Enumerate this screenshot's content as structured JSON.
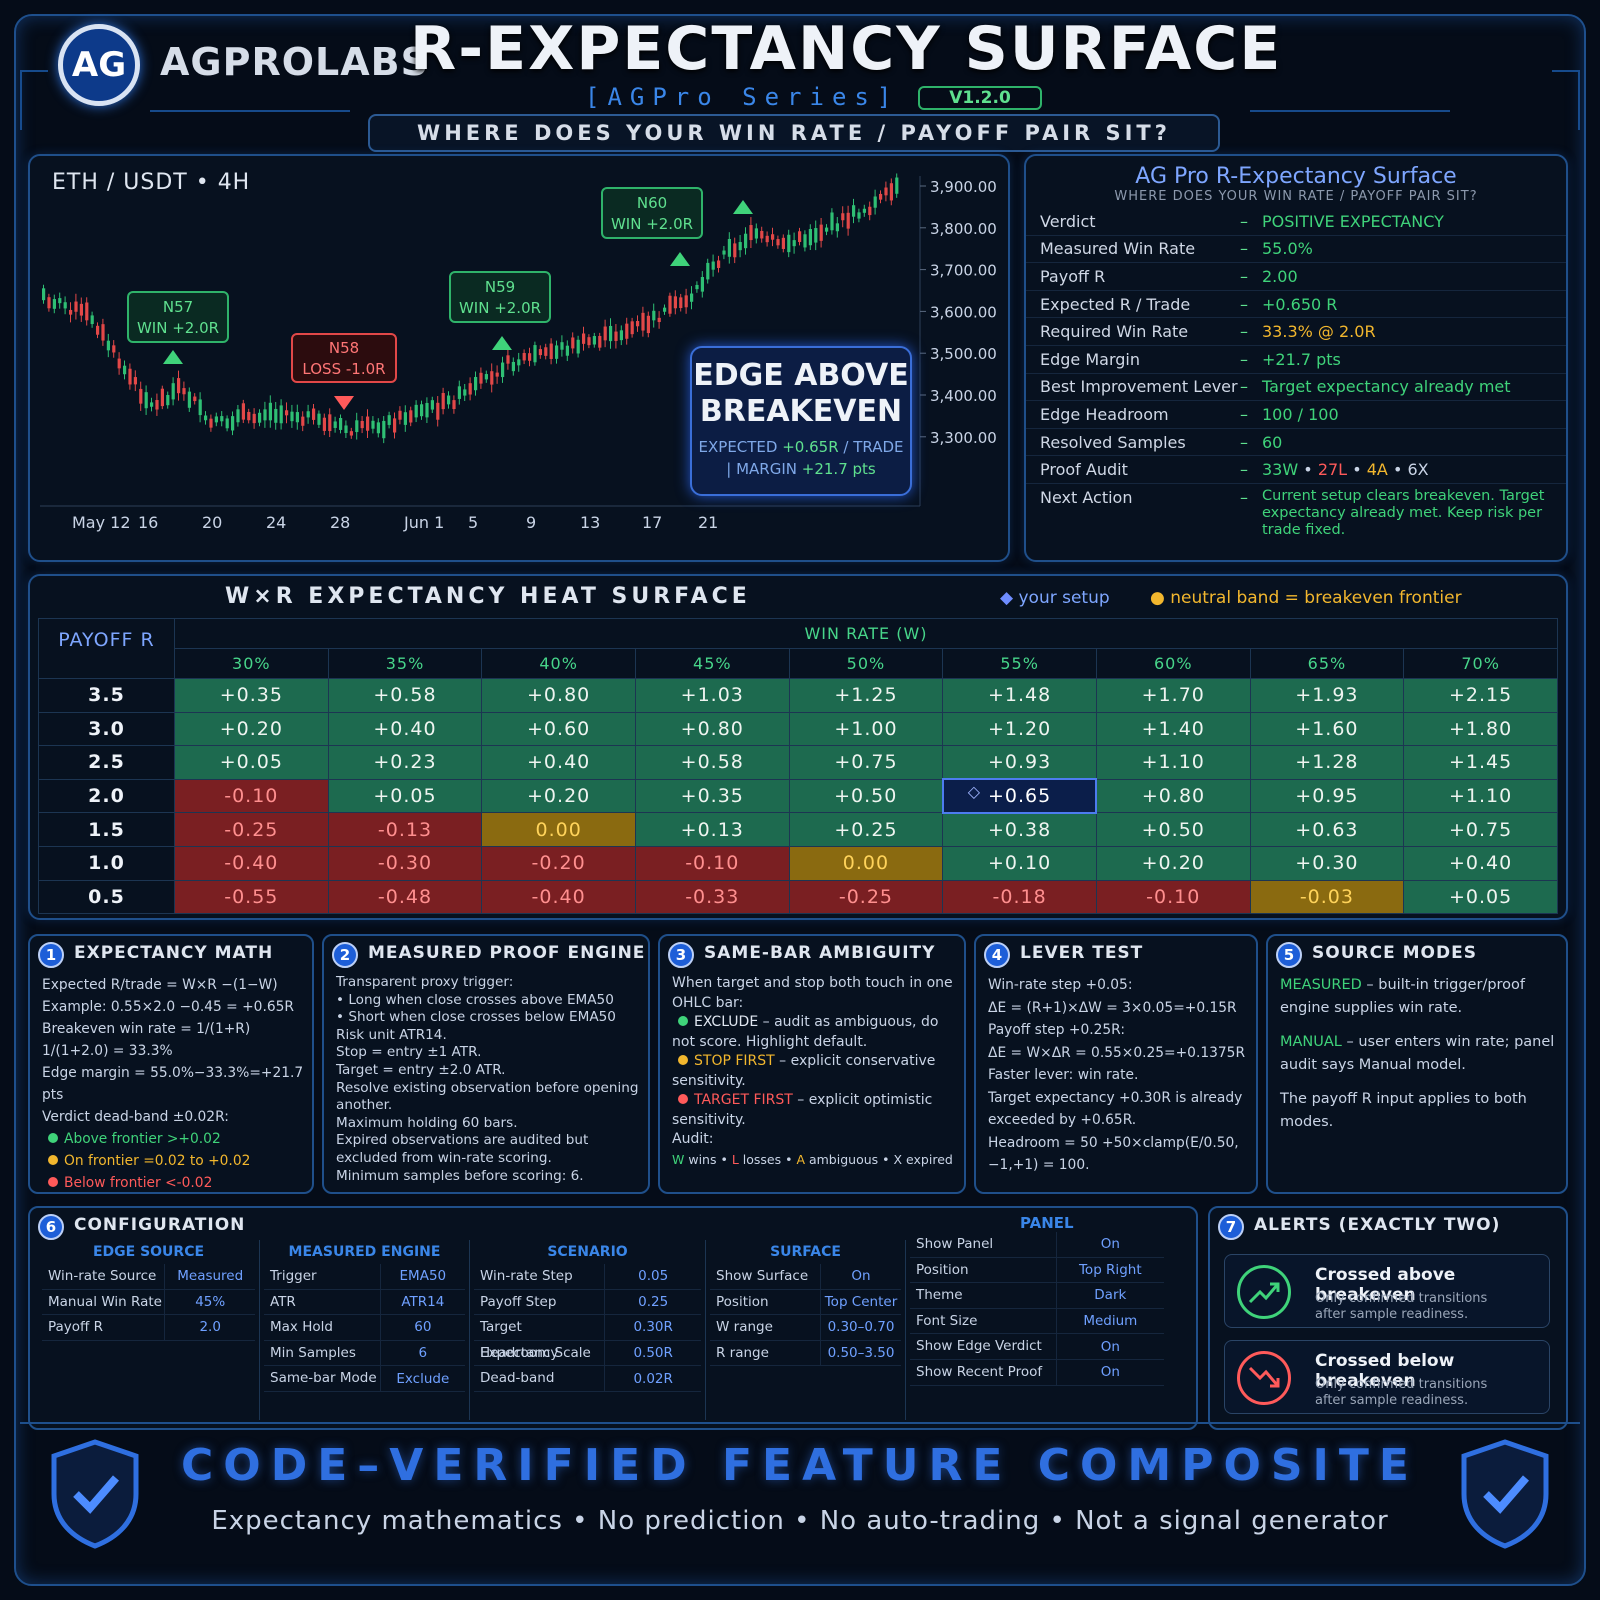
{
  "header": {
    "logo": "AG",
    "brand": "AGPROLABS",
    "title": "R-EXPECTANCY SURFACE",
    "series": "[AGPro Series]",
    "version": "V1.2.0",
    "question": "WHERE DOES YOUR WIN RATE / PAYOFF PAIR SIT?"
  },
  "chart": {
    "symbol": "ETH / USDT • 4H",
    "price_ticks": [
      "3,900.00",
      "3,800.00",
      "3,700.00",
      "3,600.00",
      "3,500.00",
      "3,400.00",
      "3,300.00"
    ],
    "date_ticks": [
      "May 12",
      "16",
      "20",
      "24",
      "28",
      "Jun 1",
      "5",
      "9",
      "13",
      "17",
      "21"
    ],
    "trades": [
      {
        "id": "N57",
        "label1": "N57",
        "label2": "WIN +2.0R",
        "type": "win"
      },
      {
        "id": "N58",
        "label1": "N58",
        "label2": "LOSS -1.0R",
        "type": "loss"
      },
      {
        "id": "N59",
        "label1": "N59",
        "label2": "WIN +2.0R",
        "type": "win"
      },
      {
        "id": "N60",
        "label1": "N60",
        "label2": "WIN +2.0R",
        "type": "win"
      }
    ],
    "edge": {
      "line1": "EDGE ABOVE",
      "line2": "BREAKEVEN",
      "expected_prefix": "EXPECTED ",
      "expected_value": "+0.65R",
      "expected_suffix": " / TRADE",
      "margin_prefix": "| MARGIN ",
      "margin_value": "+21.7 pts"
    }
  },
  "summary": {
    "title": "AG Pro R-Expectancy Surface",
    "subtitle": "WHERE DOES YOUR WIN RATE / PAYOFF PAIR SIT?",
    "dash": "–",
    "rows": [
      {
        "k": "Verdict",
        "v": "POSITIVE EXPECTANCY"
      },
      {
        "k": "Measured Win Rate",
        "v": "55.0%"
      },
      {
        "k": "Payoff R",
        "v": "2.00"
      },
      {
        "k": "Expected R / Trade",
        "v": "+0.650 R"
      },
      {
        "k": "Required Win Rate",
        "v": "33.3% @ 2.0R"
      },
      {
        "k": "Edge Margin",
        "v": "+21.7 pts"
      },
      {
        "k": "Best Improvement Lever",
        "v": "Target expectancy already met"
      },
      {
        "k": "Edge Headroom",
        "v": "100 / 100"
      },
      {
        "k": "Resolved Samples",
        "v": "60"
      }
    ],
    "audit": {
      "k": "Proof Audit",
      "w": "33W",
      "l": "27L",
      "a": "4A",
      "x": "6X",
      "sep": "•"
    },
    "next": {
      "k": "Next Action",
      "v": "Current setup clears breakeven. Target expectancy already met. Keep risk per trade fixed."
    }
  },
  "heat": {
    "title": "W×R EXPECTANCY HEAT SURFACE",
    "legend_setup": "your setup",
    "legend_neutral": "neutral band = breakeven frontier",
    "row_header": "PAYOFF R",
    "col_header": "WIN RATE (W)",
    "cols": [
      "30%",
      "35%",
      "40%",
      "45%",
      "50%",
      "55%",
      "60%",
      "65%",
      "70%"
    ],
    "rows": [
      {
        "r": "3.5",
        "v": [
          "+0.35",
          "+0.58",
          "+0.80",
          "+1.03",
          "+1.25",
          "+1.48",
          "+1.70",
          "+1.93",
          "+2.15"
        ],
        "c": [
          "g",
          "g",
          "g",
          "g",
          "g",
          "g",
          "g",
          "g",
          "g"
        ]
      },
      {
        "r": "3.0",
        "v": [
          "+0.20",
          "+0.40",
          "+0.60",
          "+0.80",
          "+1.00",
          "+1.20",
          "+1.40",
          "+1.60",
          "+1.80"
        ],
        "c": [
          "g",
          "g",
          "g",
          "g",
          "g",
          "g",
          "g",
          "g",
          "g"
        ]
      },
      {
        "r": "2.5",
        "v": [
          "+0.05",
          "+0.23",
          "+0.40",
          "+0.58",
          "+0.75",
          "+0.93",
          "+1.10",
          "+1.28",
          "+1.45"
        ],
        "c": [
          "g",
          "g",
          "g",
          "g",
          "g",
          "g",
          "g",
          "g",
          "g"
        ]
      },
      {
        "r": "2.0",
        "v": [
          "-0.10",
          "+0.05",
          "+0.20",
          "+0.35",
          "+0.50",
          "+0.65",
          "+0.80",
          "+0.95",
          "+1.10"
        ],
        "c": [
          "r",
          "g",
          "g",
          "g",
          "g",
          "me",
          "g",
          "g",
          "g"
        ]
      },
      {
        "r": "1.5",
        "v": [
          "-0.25",
          "-0.13",
          "0.00",
          "+0.13",
          "+0.25",
          "+0.38",
          "+0.50",
          "+0.63",
          "+0.75"
        ],
        "c": [
          "r",
          "r",
          "n",
          "g",
          "g",
          "g",
          "g",
          "g",
          "g"
        ]
      },
      {
        "r": "1.0",
        "v": [
          "-0.40",
          "-0.30",
          "-0.20",
          "-0.10",
          "0.00",
          "+0.10",
          "+0.20",
          "+0.30",
          "+0.40"
        ],
        "c": [
          "r",
          "r",
          "r",
          "r",
          "n",
          "g",
          "g",
          "g",
          "g"
        ]
      },
      {
        "r": "0.5",
        "v": [
          "-0.55",
          "-0.48",
          "-0.40",
          "-0.33",
          "-0.25",
          "-0.18",
          "-0.10",
          "-0.03",
          "+0.05"
        ],
        "c": [
          "r",
          "r",
          "r",
          "r",
          "r",
          "r",
          "r",
          "n",
          "g"
        ]
      }
    ]
  },
  "cards": {
    "c1": {
      "n": "1",
      "title": "EXPECTANCY MATH",
      "l1": "Expected R/trade = W×R −(1−W)",
      "l2": "Example: 0.55×2.0 −0.45 = +0.65R",
      "l3": "Breakeven win rate = 1/(1+R)",
      "l4": "1/(1+2.0) = 33.3%",
      "l5": "Edge margin = 55.0%−33.3%=+21.7 pts",
      "l6": "Verdict dead-band ±0.02R:",
      "b1": "Above frontier >+0.02",
      "b2": "On frontier =0.02 to +0.02",
      "b3": "Below frontier <-0.02"
    },
    "c2": {
      "n": "2",
      "title": "MEASURED PROOF ENGINE",
      "lines": [
        "Transparent proxy trigger:",
        "• Long when close crosses above EMA50",
        "• Short when close crosses below EMA50",
        "Risk unit ATR14.",
        "Stop = entry ±1 ATR.",
        "Target = entry ±2.0 ATR.",
        "Resolve existing observation before opening another.",
        "Maximum holding 60 bars.",
        "Expired observations are audited but excluded from win-rate scoring.",
        "Minimum samples before scoring: 6."
      ]
    },
    "c3": {
      "n": "3",
      "title": "SAME-BAR AMBIGUITY",
      "l1": "When target and stop both touch in one OHLC bar:",
      "e_k": "EXCLUDE",
      "e_v": " – audit as ambiguous, do not score. Highlight default.",
      "s_k": "STOP FIRST",
      "s_v": " – explicit conservative sensitivity.",
      "t_k": "TARGET FIRST",
      "t_v": " – explicit optimistic sensitivity.",
      "audit": "Audit:",
      "w": "W",
      "wl": " wins",
      "l": "L",
      "ll": " losses",
      "a": "A",
      "al": " ambiguous",
      "x": "X",
      "xl": " expired"
    },
    "c4": {
      "n": "4",
      "title": "LEVER TEST",
      "lines": [
        "Win-rate step +0.05:",
        "ΔE = (R+1)×ΔW = 3×0.05=+0.15R",
        "Payoff step +0.25R:",
        "ΔE = W×ΔR = 0.55×0.25=+0.1375R",
        "Faster lever: win rate.",
        "Target expectancy +0.30R is already exceeded by +0.65R.",
        "Headroom = 50 +50×clamp(E/0.50, −1,+1) = 100."
      ]
    },
    "c5": {
      "n": "5",
      "title": "SOURCE MODES",
      "m_k": "MEASURED",
      "m_v": " – built-in trigger/proof engine supplies win rate.",
      "u_k": "MANUAL",
      "u_v": " – user enters win rate; panel audit says Manual model.",
      "p": "The payoff R input applies to both modes."
    }
  },
  "config": {
    "n": "6",
    "title": "CONFIGURATION",
    "panel_label": "PANEL",
    "cols": [
      {
        "head": "EDGE SOURCE",
        "rows": [
          [
            "Win-rate Source",
            "Measured"
          ],
          [
            "Manual Win Rate",
            "45%"
          ],
          [
            "Payoff R",
            "2.0"
          ]
        ]
      },
      {
        "head": "MEASURED ENGINE",
        "rows": [
          [
            "Trigger",
            "EMA50"
          ],
          [
            "ATR",
            "ATR14"
          ],
          [
            "Max Hold",
            "60"
          ],
          [
            "Min Samples",
            "6"
          ],
          [
            "Same-bar Mode",
            "Exclude"
          ]
        ]
      },
      {
        "head": "SCENARIO",
        "rows": [
          [
            "Win-rate Step",
            "0.05"
          ],
          [
            "Payoff Step",
            "0.25"
          ],
          [
            "Target Expectancy",
            "0.30R"
          ],
          [
            "Headroom Scale",
            "0.50R"
          ],
          [
            "Dead-band",
            "0.02R"
          ]
        ]
      },
      {
        "head": "SURFACE",
        "rows": [
          [
            "Show Surface",
            "On"
          ],
          [
            "Position",
            "Top Center"
          ],
          [
            "W range",
            "0.30–0.70"
          ],
          [
            "R range",
            "0.50–3.50"
          ]
        ]
      },
      {
        "head": "",
        "rows": [
          [
            "Show Panel",
            "On"
          ],
          [
            "Position",
            "Top Right"
          ],
          [
            "Theme",
            "Dark"
          ],
          [
            "Font Size",
            "Medium"
          ],
          [
            "Show Edge Verdict",
            "On"
          ],
          [
            "Show Recent Proof",
            "On"
          ]
        ]
      }
    ]
  },
  "alerts": {
    "n": "7",
    "title": "ALERTS (EXACTLY TWO)",
    "a1_title": "Crossed above breakeven",
    "a1_sub1": "Only confirmed transitions",
    "a1_sub2": "after sample readiness.",
    "a2_title": "Crossed below breakeven",
    "a2_sub1": "Only confirmed transitions",
    "a2_sub2": "after sample readiness."
  },
  "footer": {
    "title": "CODE–VERIFIED FEATURE COMPOSITE",
    "tagline": "Expectancy mathematics  •  No prediction  •  No auto-trading  •  Not a signal generator"
  },
  "colors": {
    "green": "#3fd37a",
    "red": "#ff5a5a",
    "yellow": "#f2b72e",
    "blue": "#3a86e8"
  }
}
